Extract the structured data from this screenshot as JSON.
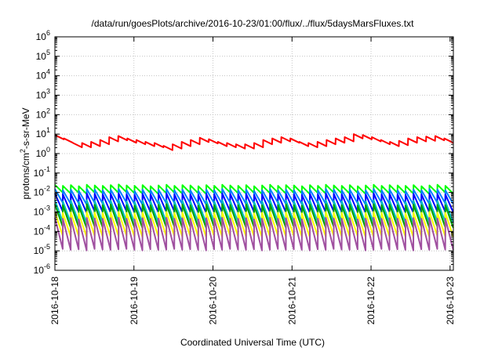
{
  "chart_data": {
    "type": "line",
    "title": "/data/run/goesPlots/archive/2016-10-23/01:00/flux/../flux/5daysMarsFluxes.txt",
    "xlabel": "Coordinated Universal Time (UTC)",
    "ylabel": {
      "prefix": "protons/cm",
      "sup": "2",
      "suffix": "-s-sr-MeV"
    },
    "ylog": true,
    "ylim": [
      1e-06,
      1000000.0
    ],
    "xlim": [
      "2016-10-18",
      "2016-10-23 01:00"
    ],
    "x_ticks": [
      "2016-10-18",
      "2016-10-19",
      "2016-10-20",
      "2016-10-21",
      "2016-10-22",
      "2016-10-23"
    ],
    "y_tick_exponents": [
      -6,
      -5,
      -4,
      -3,
      -2,
      -1,
      0,
      1,
      2,
      3,
      4,
      5,
      6
    ],
    "y_tick_base": "10",
    "grid": true,
    "sawtooth_period_days": 0.1,
    "series": [
      {
        "color": "#ff0000",
        "peaks": [
          9,
          6,
          3.5,
          3.5,
          4,
          5,
          7,
          8,
          6,
          5,
          4,
          3.5,
          2.5,
          3,
          4,
          5,
          6.5,
          5.5,
          4,
          3.5,
          3,
          3,
          3.5,
          5,
          6,
          7,
          6,
          4,
          3.5,
          4,
          5,
          6,
          7,
          10,
          9,
          7,
          5,
          4,
          4.5,
          6,
          7,
          7.5,
          8,
          6
        ],
        "drop": 0.6
      },
      {
        "color": "#00ff00",
        "peaks": [
          0.025,
          0.022,
          0.024,
          0.021,
          0.025,
          0.023,
          0.022,
          0.024,
          0.026,
          0.023,
          0.022,
          0.024,
          0.021,
          0.023,
          0.025,
          0.022,
          0.024,
          0.023,
          0.021,
          0.024,
          0.022,
          0.025,
          0.023,
          0.022,
          0.024,
          0.021,
          0.023,
          0.025,
          0.022,
          0.024,
          0.023,
          0.021,
          0.024,
          0.022,
          0.025,
          0.023,
          0.022,
          0.024,
          0.021,
          0.023,
          0.025,
          0.022,
          0.024,
          0.023,
          0.022,
          0.024,
          0.021,
          0.023,
          0.025,
          0.022
        ],
        "drop": 0.4
      },
      {
        "color": "#007fff",
        "peaks": [
          0.015,
          0.013,
          0.014,
          0.012,
          0.015,
          0.014,
          0.013,
          0.014,
          0.015,
          0.013,
          0.012,
          0.014,
          0.013,
          0.014,
          0.015,
          0.013,
          0.014,
          0.013,
          0.012,
          0.014,
          0.013,
          0.015,
          0.014,
          0.013,
          0.014,
          0.012,
          0.013,
          0.015,
          0.013,
          0.014,
          0.013,
          0.012,
          0.014,
          0.013,
          0.015,
          0.014,
          0.013,
          0.014,
          0.012,
          0.013,
          0.015,
          0.013,
          0.014,
          0.013,
          0.012,
          0.014,
          0.013,
          0.015,
          0.014,
          0.013
        ],
        "drop": 0.2
      },
      {
        "color": "#0000ff",
        "peaks": [
          0.009,
          0.008,
          0.0085,
          0.0075,
          0.009,
          0.0085,
          0.008,
          0.0085,
          0.009,
          0.008,
          0.0075,
          0.0085,
          0.008,
          0.0085,
          0.009,
          0.008,
          0.0085,
          0.008,
          0.0075,
          0.0085,
          0.008,
          0.009,
          0.0085,
          0.008,
          0.0085,
          0.0075,
          0.008,
          0.009,
          0.008,
          0.0085,
          0.008,
          0.0075,
          0.0085,
          0.008,
          0.009,
          0.0085,
          0.008,
          0.0085,
          0.0075,
          0.008,
          0.009,
          0.008,
          0.0085,
          0.008,
          0.0075,
          0.0085,
          0.008,
          0.009,
          0.0085,
          0.008
        ],
        "drop": 0.12
      },
      {
        "color": "#00bfbf",
        "peaks": [
          0.004,
          0.0035,
          0.0038,
          0.0033,
          0.004,
          0.0037,
          0.0035,
          0.0038,
          0.004,
          0.0035,
          0.0033,
          0.0038,
          0.0035,
          0.0037,
          0.004,
          0.0035,
          0.0038,
          0.0035,
          0.0033,
          0.0038,
          0.0035,
          0.004,
          0.0037,
          0.0035,
          0.0038,
          0.0033,
          0.0035,
          0.004,
          0.0035,
          0.0038,
          0.0035,
          0.0033,
          0.0038,
          0.0035,
          0.004,
          0.0037,
          0.0035,
          0.0038,
          0.0033,
          0.0035,
          0.004,
          0.0035,
          0.0038,
          0.0035,
          0.0033,
          0.0038,
          0.0035,
          0.004,
          0.0037,
          0.0035
        ],
        "drop": 0.08
      },
      {
        "color": "#00a000",
        "peaks": [
          0.0025,
          0.0022,
          0.0024,
          0.0021,
          0.0025,
          0.0023,
          0.0022,
          0.0024,
          0.0025,
          0.0022,
          0.0021,
          0.0024,
          0.0022,
          0.0023,
          0.0025,
          0.0022,
          0.0024,
          0.0022,
          0.0021,
          0.0024,
          0.0022,
          0.0025,
          0.0023,
          0.0022,
          0.0024,
          0.0021,
          0.0022,
          0.0025,
          0.0022,
          0.0024,
          0.0022,
          0.0021,
          0.0024,
          0.0022,
          0.0025,
          0.0023,
          0.0022,
          0.0024,
          0.0021,
          0.0022,
          0.0025,
          0.0022,
          0.0024,
          0.0022,
          0.0021,
          0.0024,
          0.0022,
          0.0025,
          0.0023,
          0.0022
        ],
        "drop": 0.07
      },
      {
        "color": "#ffff00",
        "peaks": [
          0.001,
          0.0009,
          0.00095,
          0.00085,
          0.001,
          0.00093,
          0.0009,
          0.00095,
          0.001,
          0.0009,
          0.00085,
          0.00095,
          0.0009,
          0.00093,
          0.001,
          0.0009,
          0.00095,
          0.0009,
          0.00085,
          0.00095,
          0.0009,
          0.001,
          0.00093,
          0.0009,
          0.00095,
          0.00085,
          0.0009,
          0.001,
          0.0009,
          0.00095,
          0.0009,
          0.00085,
          0.00095,
          0.0009,
          0.001,
          0.00093,
          0.0009,
          0.00095,
          0.00085,
          0.0009,
          0.001,
          0.0009,
          0.00095,
          0.0009,
          0.00085,
          0.00095,
          0.0009,
          0.001,
          0.00093,
          0.0009
        ],
        "drop": 0.06
      },
      {
        "color": "#a050a0",
        "peaks": [
          0.0005,
          0.00045,
          0.00048,
          0.00042,
          0.0005,
          0.00046,
          0.00045,
          0.00048,
          0.0005,
          0.00045,
          0.00042,
          0.00048,
          0.00045,
          0.00046,
          0.0005,
          0.00045,
          0.00048,
          0.00045,
          0.00042,
          0.00048,
          0.00045,
          0.0005,
          0.00046,
          0.00045,
          0.00048,
          0.00042,
          0.00045,
          0.0005,
          0.00045,
          0.00048,
          0.00045,
          0.00042,
          0.00048,
          0.00045,
          0.0005,
          0.00046,
          0.00045,
          0.00048,
          0.00042,
          0.00045,
          0.0005,
          0.00045,
          0.00048,
          0.00045,
          0.00042,
          0.00048,
          0.00045,
          0.0005,
          0.00046,
          0.00045
        ],
        "drop": 0.025
      }
    ]
  }
}
